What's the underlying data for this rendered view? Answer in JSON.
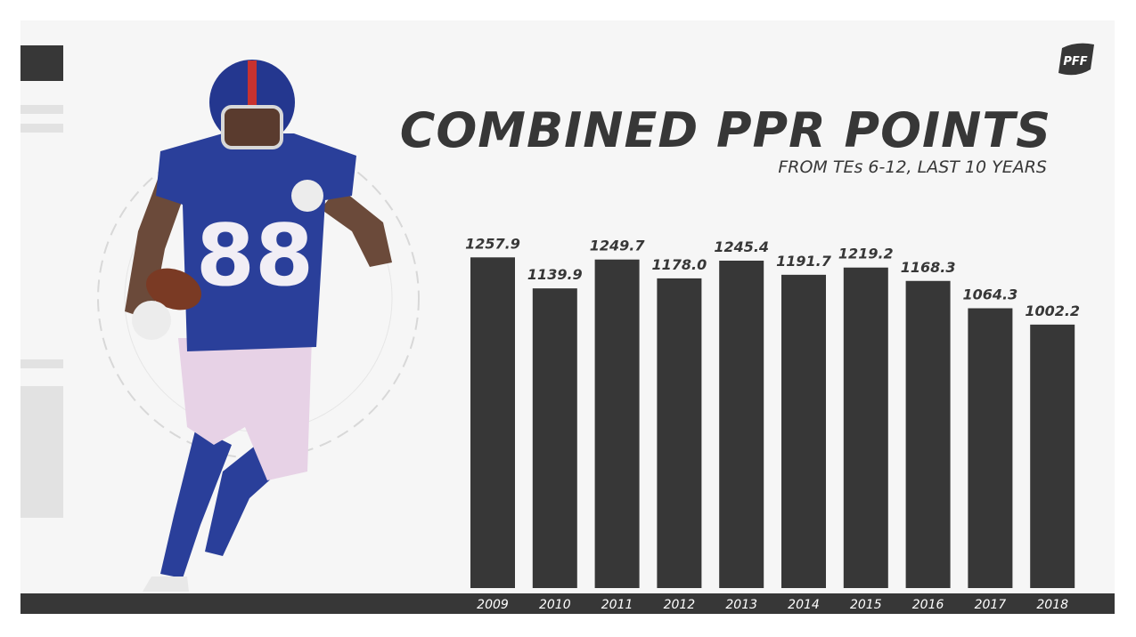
{
  "brand": {
    "logo_text": "PFF"
  },
  "colors": {
    "bar": "#373737",
    "background": "#f6f6f6",
    "accent_blue": "#2a3f9a"
  },
  "chart_data": {
    "type": "bar",
    "title": "COMBINED PPR POINTS",
    "subtitle": "FROM TEs 6-12, LAST 10 YEARS",
    "categories": [
      "2009",
      "2010",
      "2011",
      "2012",
      "2013",
      "2014",
      "2015",
      "2016",
      "2017",
      "2018"
    ],
    "values": [
      1257.9,
      1139.9,
      1249.7,
      1178.0,
      1245.4,
      1191.7,
      1219.2,
      1168.3,
      1064.3,
      1002.2
    ],
    "value_labels": [
      "1257.9",
      "1139.9",
      "1249.7",
      "1178.0",
      "1245.4",
      "1191.7",
      "1219.2",
      "1168.3",
      "1064.3",
      "1002.2"
    ],
    "xlabel": "",
    "ylabel": "",
    "ylim": [
      0,
      1300
    ],
    "grid": false,
    "legend": "none"
  },
  "illustration": {
    "jersey_number": "88"
  }
}
